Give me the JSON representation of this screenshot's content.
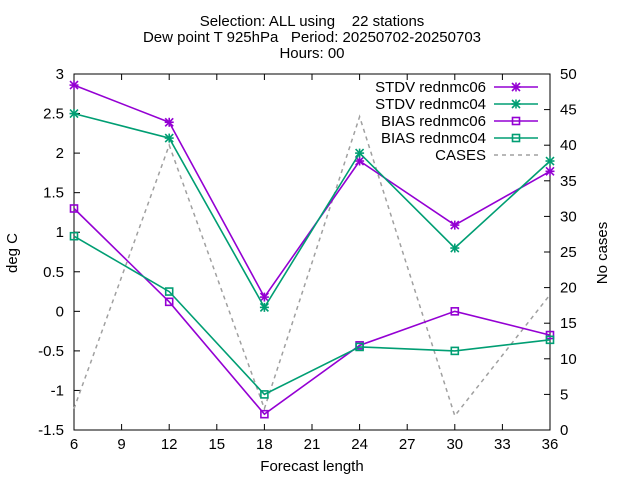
{
  "chart_data": {
    "type": "line",
    "title_lines": [
      "Selection: ALL using    22 stations",
      "Dew point T 925hPa   Period: 20250702-20250703",
      "Hours: 00"
    ],
    "xlabel": "Forecast length",
    "ylabel": "deg C",
    "y2label": "No cases",
    "xlim": [
      6,
      36
    ],
    "ylim": [
      -1.5,
      3
    ],
    "y2lim": [
      0,
      50
    ],
    "xticks": [
      "6",
      "9",
      "12",
      "15",
      "18",
      "21",
      "24",
      "27",
      "30",
      "33",
      "36"
    ],
    "yticks": [
      "-1.5",
      "-1",
      "-0.5",
      "0",
      "0.5",
      "1",
      "1.5",
      "2",
      "2.5",
      "3"
    ],
    "y2ticks": [
      "0",
      "5",
      "10",
      "15",
      "20",
      "25",
      "30",
      "35",
      "40",
      "45",
      "50"
    ],
    "grid": false,
    "legend_position": "top-right",
    "x": [
      6,
      12,
      18,
      24,
      30,
      36
    ],
    "series": [
      {
        "name": "STDV rednmc06",
        "axis": "y1",
        "marker": "star",
        "color": "#9400d3",
        "values": [
          2.86,
          2.39,
          0.18,
          1.9,
          1.09,
          1.77
        ]
      },
      {
        "name": "STDV rednmc04",
        "axis": "y1",
        "marker": "star",
        "color": "#009e73",
        "values": [
          2.5,
          2.19,
          0.05,
          2.0,
          0.8,
          1.9
        ]
      },
      {
        "name": "BIAS rednmc06",
        "axis": "y1",
        "marker": "square",
        "color": "#9400d3",
        "values": [
          1.3,
          0.12,
          -1.3,
          -0.43,
          0.0,
          -0.3
        ]
      },
      {
        "name": "BIAS rednmc04",
        "axis": "y1",
        "marker": "square",
        "color": "#009e73",
        "values": [
          0.95,
          0.25,
          -1.05,
          -0.45,
          -0.5,
          -0.36
        ]
      },
      {
        "name": "CASES",
        "axis": "y2",
        "marker": "none",
        "color": "#a0a0a0",
        "dashed": true,
        "values": [
          3,
          40,
          3,
          44,
          2,
          19
        ]
      }
    ]
  }
}
